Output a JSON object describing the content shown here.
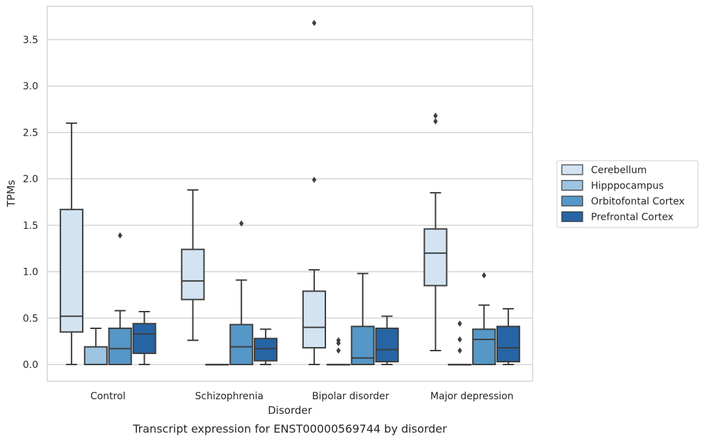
{
  "chart_data": {
    "type": "boxplot",
    "title": "",
    "caption": "Transcript expression for ENST00000569744 by disorder",
    "xlabel": "Disorder",
    "ylabel": "TPMs",
    "ylim": [
      -0.18,
      3.86
    ],
    "yticks": [
      "0.0",
      "0.5",
      "1.0",
      "1.5",
      "2.0",
      "2.5",
      "3.0",
      "3.5"
    ],
    "ytick_values": [
      0,
      0.5,
      1,
      1.5,
      2,
      2.5,
      3,
      3.5
    ],
    "grid": true,
    "legend_position": "right",
    "categories": [
      "Control",
      "Schizophrenia",
      "Bipolar disorder",
      "Major depression"
    ],
    "series": [
      {
        "name": "Cerebellum",
        "color": "#d3e3f2",
        "boxes": [
          {
            "whislo": 0.0,
            "q1": 0.35,
            "med": 0.52,
            "q3": 1.67,
            "whishi": 2.6,
            "fliers": []
          },
          {
            "whislo": 0.26,
            "q1": 0.7,
            "med": 0.9,
            "q3": 1.24,
            "whishi": 1.88,
            "fliers": []
          },
          {
            "whislo": 0.0,
            "q1": 0.18,
            "med": 0.4,
            "q3": 0.79,
            "whishi": 1.02,
            "fliers": [
              1.99,
              3.68
            ]
          },
          {
            "whislo": 0.15,
            "q1": 0.85,
            "med": 1.2,
            "q3": 1.46,
            "whishi": 1.85,
            "fliers": [
              2.62,
              2.68
            ]
          }
        ]
      },
      {
        "name": "Hipppocampus",
        "color": "#9dc4e0",
        "boxes": [
          {
            "whislo": 0.0,
            "q1": 0.0,
            "med": 0.0,
            "q3": 0.19,
            "whishi": 0.39,
            "fliers": []
          },
          {
            "whislo": 0.0,
            "q1": 0.0,
            "med": 0.0,
            "q3": 0.0,
            "whishi": 0.0,
            "fliers": []
          },
          {
            "whislo": 0.0,
            "q1": 0.0,
            "med": 0.0,
            "q3": 0.0,
            "whishi": 0.0,
            "fliers": [
              0.15,
              0.23,
              0.26
            ]
          },
          {
            "whislo": 0.0,
            "q1": 0.0,
            "med": 0.0,
            "q3": 0.0,
            "whishi": 0.0,
            "fliers": [
              0.15,
              0.27,
              0.44
            ]
          }
        ]
      },
      {
        "name": "Orbitofontal Cortex",
        "color": "#5597c6",
        "boxes": [
          {
            "whislo": 0.0,
            "q1": 0.0,
            "med": 0.17,
            "q3": 0.39,
            "whishi": 0.58,
            "fliers": [
              1.39
            ]
          },
          {
            "whislo": 0.0,
            "q1": 0.0,
            "med": 0.19,
            "q3": 0.43,
            "whishi": 0.91,
            "fliers": [
              1.52
            ]
          },
          {
            "whislo": 0.0,
            "q1": 0.0,
            "med": 0.07,
            "q3": 0.41,
            "whishi": 0.98,
            "fliers": []
          },
          {
            "whislo": 0.0,
            "q1": 0.0,
            "med": 0.27,
            "q3": 0.38,
            "whishi": 0.64,
            "fliers": [
              0.96
            ]
          }
        ]
      },
      {
        "name": "Prefrontal Cortex",
        "color": "#2664a4",
        "boxes": [
          {
            "whislo": 0.0,
            "q1": 0.12,
            "med": 0.33,
            "q3": 0.44,
            "whishi": 0.57,
            "fliers": []
          },
          {
            "whislo": 0.0,
            "q1": 0.04,
            "med": 0.17,
            "q3": 0.28,
            "whishi": 0.38,
            "fliers": []
          },
          {
            "whislo": 0.0,
            "q1": 0.03,
            "med": 0.16,
            "q3": 0.39,
            "whishi": 0.52,
            "fliers": []
          },
          {
            "whislo": 0.0,
            "q1": 0.03,
            "med": 0.18,
            "q3": 0.41,
            "whishi": 0.6,
            "fliers": []
          }
        ]
      }
    ]
  }
}
